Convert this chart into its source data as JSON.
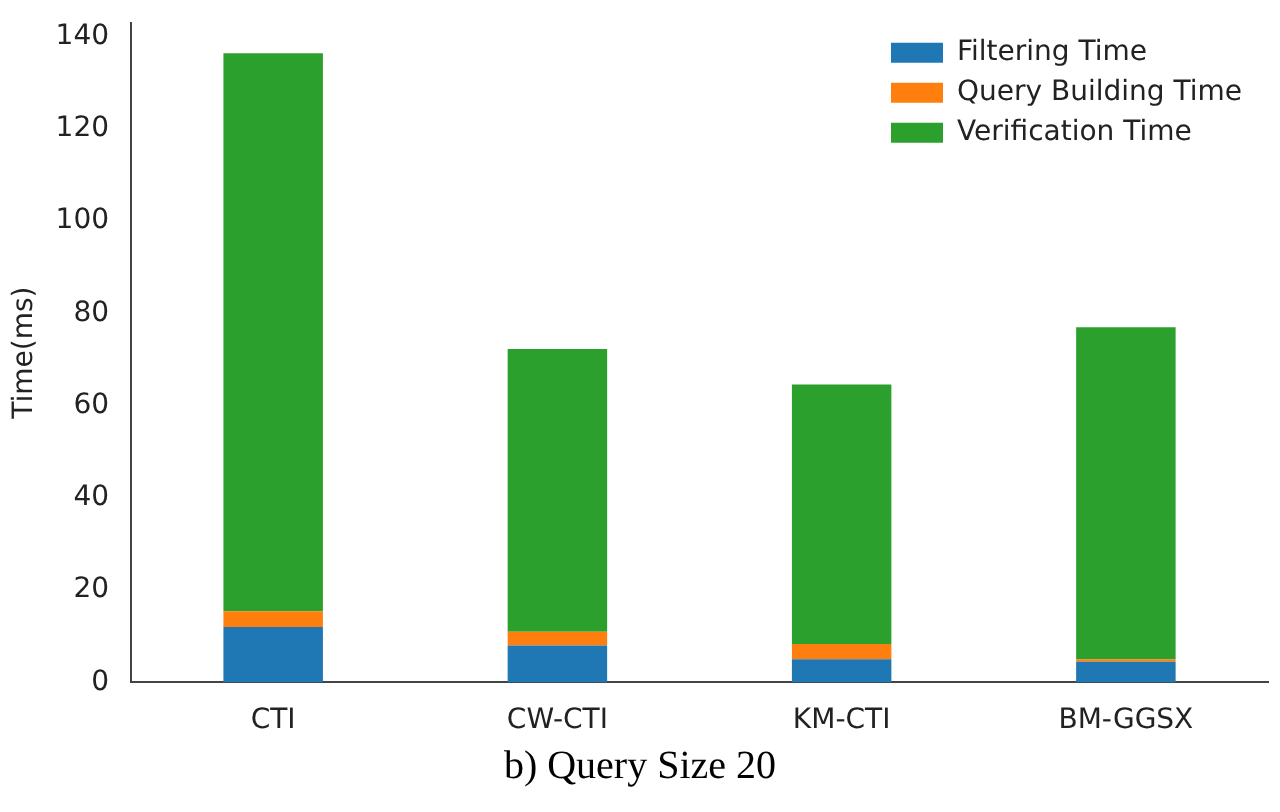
{
  "chart_data": {
    "type": "bar",
    "title": "b) Query Size 20",
    "ylabel": "Time(ms)",
    "categories": [
      "CTI",
      "CW-CTI",
      "KM-CTI",
      "BM-GGSX"
    ],
    "series": [
      {
        "name": "Filtering Time",
        "color": "#1f77b4",
        "values": [
          12,
          8,
          5,
          4.5
        ]
      },
      {
        "name": "Query Building Time",
        "color": "#ff7f0e",
        "values": [
          3.4,
          3,
          3.3,
          0.5
        ]
      },
      {
        "name": "Verification Time",
        "color": "#2ca02c",
        "values": [
          121,
          61.3,
          56.3,
          72
        ]
      }
    ],
    "stacked": true,
    "ylim": [
      0,
      143
    ],
    "yticks": [
      0,
      20,
      40,
      60,
      80,
      100,
      120,
      140
    ],
    "grid": false,
    "legend": "top right"
  }
}
